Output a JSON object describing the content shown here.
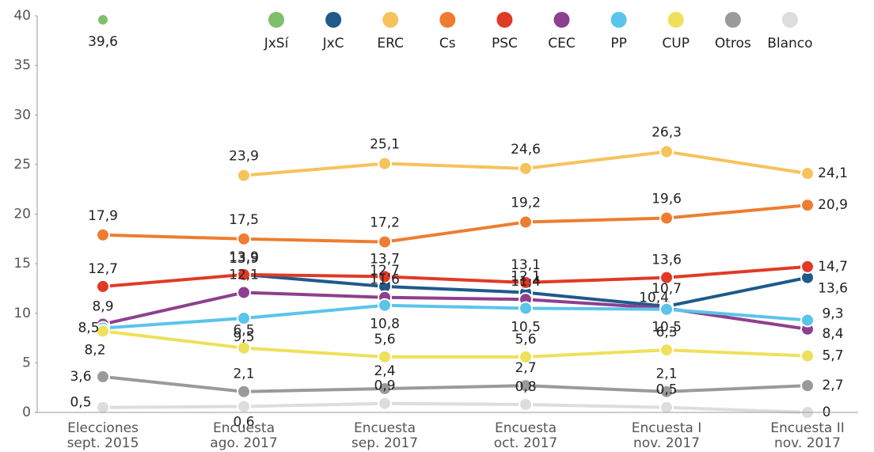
{
  "chart_data": {
    "type": "line",
    "categories": [
      "Elecciones\nsept. 2015",
      "Encuesta\nago. 2017",
      "Encuesta\nsep. 2017",
      "Encuesta\noct. 2017",
      "Encuesta I\nnov. 2017",
      "Encuesta II\nnov. 2017"
    ],
    "ylim": [
      0,
      40
    ],
    "yticks": [
      0,
      5,
      10,
      15,
      20,
      25,
      30,
      35,
      40
    ],
    "grid": false,
    "legend": "top",
    "series": [
      {
        "name": "JxSí",
        "color": "#7dbf6a",
        "values": [
          39.6,
          null,
          null,
          null,
          null,
          null
        ],
        "value_labels": [
          "39,6",
          null,
          null,
          null,
          null,
          null
        ]
      },
      {
        "name": "JxC",
        "color": "#1f5a8a",
        "values": [
          null,
          13.9,
          12.7,
          12.1,
          10.7,
          13.6
        ],
        "value_labels": [
          null,
          "13,9",
          "12,7",
          "12,1",
          "10,7",
          "13,6"
        ]
      },
      {
        "name": "ERC",
        "color": "#f6c35b",
        "values": [
          null,
          23.9,
          25.1,
          24.6,
          26.3,
          24.1
        ],
        "value_labels": [
          null,
          "23,9",
          "25,1",
          "24,6",
          "26,3",
          "24,1"
        ]
      },
      {
        "name": "Cs",
        "color": "#ee7d31",
        "values": [
          17.9,
          17.5,
          17.2,
          19.2,
          19.6,
          20.9
        ],
        "value_labels": [
          "17,9",
          "17,5",
          "17,2",
          "19,2",
          "19,6",
          "20,9"
        ]
      },
      {
        "name": "PSC",
        "color": "#e03a26",
        "values": [
          12.7,
          13.9,
          13.7,
          13.1,
          13.6,
          14.7
        ],
        "value_labels": [
          "12,7",
          "13,9",
          "13,7",
          "13,1",
          "13,6",
          "14,7"
        ]
      },
      {
        "name": "CEC",
        "color": "#8e3f8f",
        "values": [
          8.9,
          12.1,
          11.6,
          11.4,
          10.5,
          8.4
        ],
        "value_labels": [
          "8,9",
          "12,1",
          "11,6",
          "11,4",
          "10,5",
          "8,4"
        ]
      },
      {
        "name": "PP",
        "color": "#5bc4ea",
        "values": [
          8.5,
          9.5,
          10.8,
          10.5,
          10.4,
          9.3
        ],
        "value_labels": [
          "8,5",
          "9,5",
          "10,8",
          "10,5",
          "10,4",
          "9,3"
        ]
      },
      {
        "name": "CUP",
        "color": "#eee05a",
        "values": [
          8.2,
          6.5,
          5.6,
          5.6,
          6.3,
          5.7
        ],
        "value_labels": [
          "8,2",
          "6,5",
          "5,6",
          "5,6",
          "6,3",
          "5,7"
        ]
      },
      {
        "name": "Otros",
        "color": "#9a9a9a",
        "values": [
          3.6,
          2.1,
          2.4,
          2.7,
          2.1,
          2.7
        ],
        "value_labels": [
          "3,6",
          "2,1",
          "2,4",
          "2,7",
          "2,1",
          "2,7"
        ]
      },
      {
        "name": "Blanco",
        "color": "#dddddd",
        "values": [
          0.5,
          0.6,
          0.9,
          0.8,
          0.5,
          0
        ],
        "value_labels": [
          "0,5",
          "0,6",
          "0,9",
          "0,8",
          "0,5",
          "0"
        ]
      }
    ]
  }
}
